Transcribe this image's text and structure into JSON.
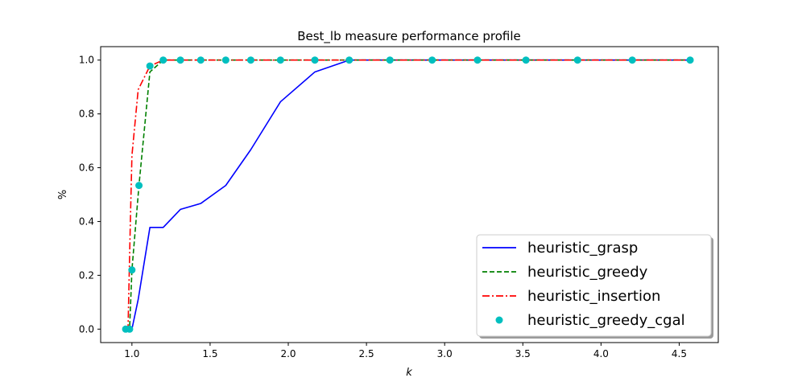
{
  "chart_data": {
    "type": "line",
    "title": "Best_lb measure performance profile",
    "xlabel": "k",
    "ylabel": "%",
    "xlim": [
      0.8,
      4.75
    ],
    "ylim": [
      -0.05,
      1.05
    ],
    "xticks": [
      "1.0",
      "1.5",
      "2.0",
      "2.5",
      "3.0",
      "3.5",
      "4.0",
      "4.5"
    ],
    "xtick_values": [
      1.0,
      1.5,
      2.0,
      2.5,
      3.0,
      3.5,
      4.0,
      4.5
    ],
    "yticks": [
      "0.0",
      "0.2",
      "0.4",
      "0.6",
      "0.8",
      "1.0"
    ],
    "ytick_values": [
      0.0,
      0.2,
      0.4,
      0.6,
      0.8,
      1.0
    ],
    "grid": false,
    "legend_position": "lower-right",
    "series": [
      {
        "name": "heuristic_grasp",
        "color": "#0000ff",
        "style": "solid",
        "x": [
          0.96,
          0.985,
          1.0,
          1.04,
          1.115,
          1.2,
          1.31,
          1.44,
          1.6,
          1.76,
          1.95,
          2.17,
          2.39,
          2.65,
          2.92,
          3.21,
          3.52,
          3.85,
          4.2,
          4.57
        ],
        "y": [
          0.0,
          0.0,
          0.0,
          0.11,
          0.378,
          0.378,
          0.445,
          0.467,
          0.534,
          0.667,
          0.845,
          0.956,
          1.0,
          1.0,
          1.0,
          1.0,
          1.0,
          1.0,
          1.0,
          1.0
        ]
      },
      {
        "name": "heuristic_greedy",
        "color": "#008000",
        "style": "dashed",
        "x": [
          0.96,
          0.985,
          1.0,
          1.045,
          1.115,
          1.2,
          1.31,
          1.44,
          1.6,
          1.76,
          1.95,
          2.17,
          2.39,
          2.65,
          2.92,
          3.21,
          3.52,
          3.85,
          4.2,
          4.57
        ],
        "y": [
          0.0,
          0.0,
          0.22,
          0.534,
          0.956,
          1.0,
          1.0,
          1.0,
          1.0,
          1.0,
          1.0,
          1.0,
          1.0,
          1.0,
          1.0,
          1.0,
          1.0,
          1.0,
          1.0,
          1.0
        ]
      },
      {
        "name": "heuristic_insertion",
        "color": "#ff0000",
        "style": "dashdot",
        "x": [
          0.96,
          0.975,
          0.99,
          1.0,
          1.04,
          1.115,
          1.2,
          1.31,
          1.44,
          1.6,
          1.76,
          1.95,
          2.17,
          2.39,
          2.65,
          2.92,
          3.21,
          3.52,
          3.85,
          4.2,
          4.57
        ],
        "y": [
          0.0,
          0.0,
          0.4,
          0.645,
          0.89,
          0.978,
          1.0,
          1.0,
          1.0,
          1.0,
          1.0,
          1.0,
          1.0,
          1.0,
          1.0,
          1.0,
          1.0,
          1.0,
          1.0,
          1.0,
          1.0
        ]
      },
      {
        "name": "heuristic_greedy_cgal",
        "color": "#00bfbf",
        "style": "markers",
        "x": [
          0.96,
          0.985,
          1.0,
          1.045,
          1.115,
          1.2,
          1.31,
          1.44,
          1.6,
          1.76,
          1.95,
          2.17,
          2.39,
          2.65,
          2.92,
          3.21,
          3.52,
          3.85,
          4.2,
          4.57
        ],
        "y": [
          0.0,
          0.0,
          0.22,
          0.534,
          0.978,
          1.0,
          1.0,
          1.0,
          1.0,
          1.0,
          1.0,
          1.0,
          1.0,
          1.0,
          1.0,
          1.0,
          1.0,
          1.0,
          1.0,
          1.0
        ]
      }
    ]
  }
}
